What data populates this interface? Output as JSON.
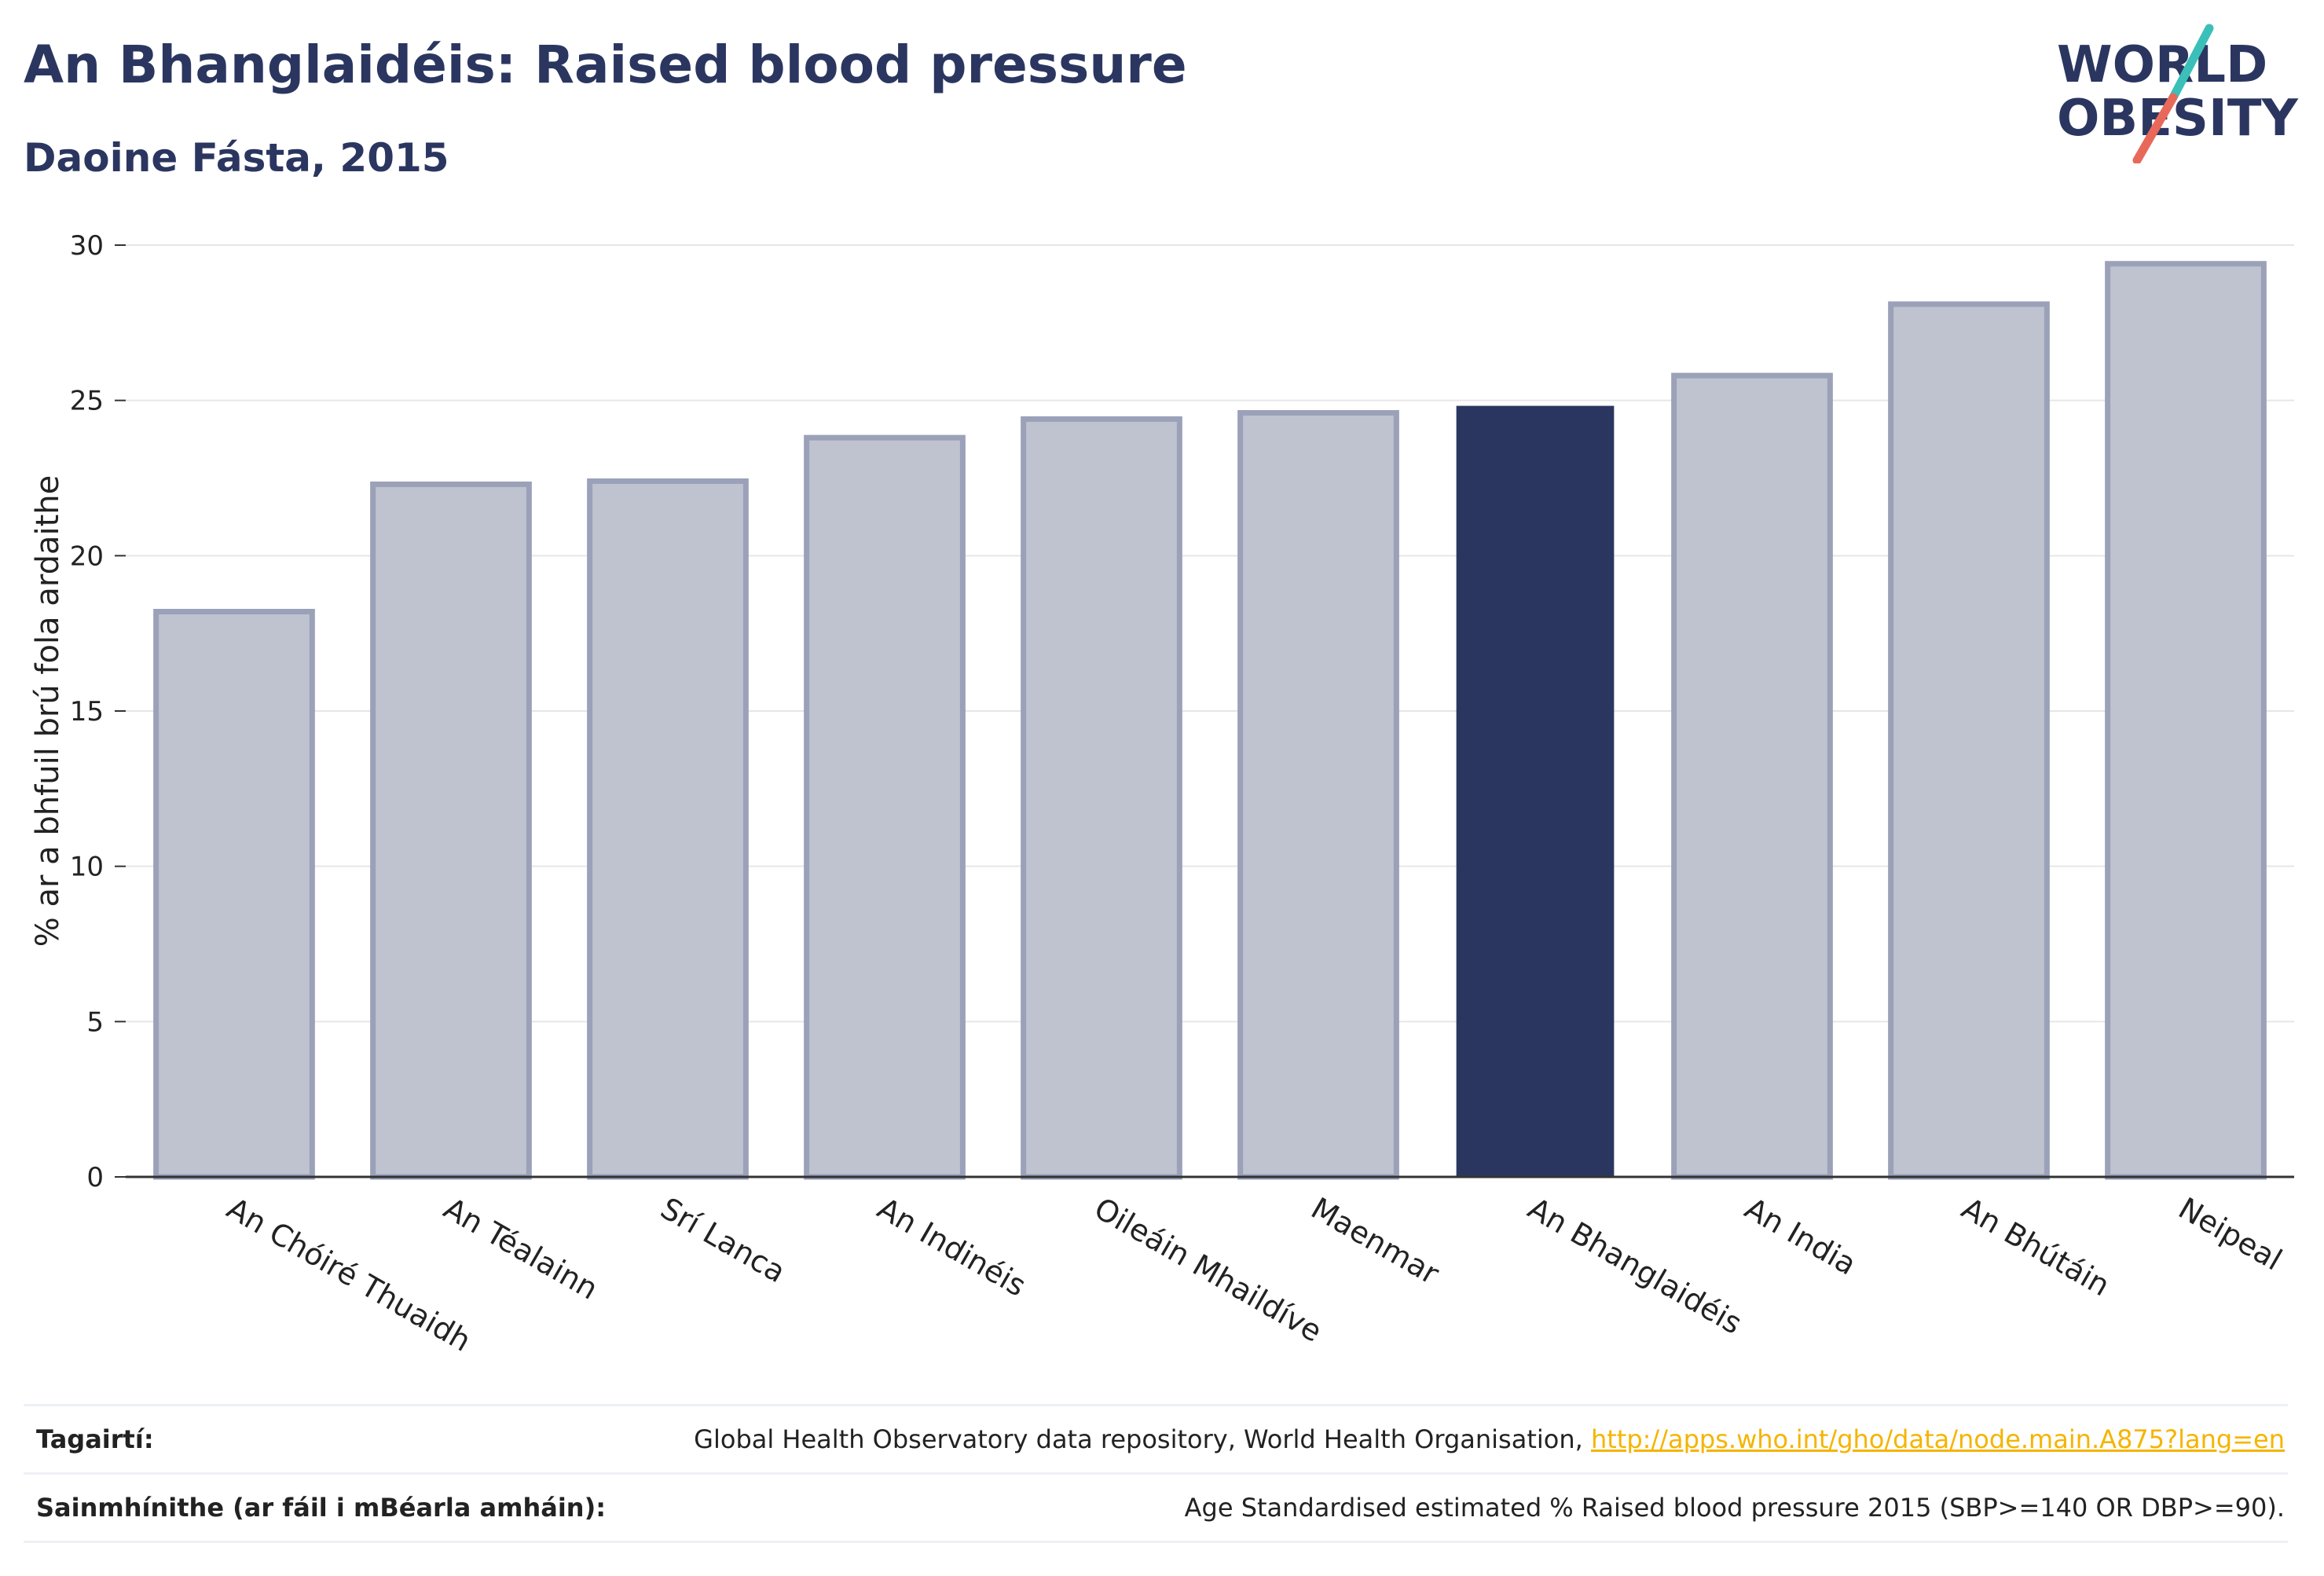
{
  "title": "An Bhanglaidéis: Raised blood pressure",
  "subtitle": "Daoine Fásta, 2015",
  "logo": {
    "line1": "WORLD",
    "line2": "OBESITY"
  },
  "colors": {
    "highlight": "#2b3660",
    "bar_fill": "#bfc3d0",
    "bar_stroke": "#9aa1b8",
    "grid": "#e6e6e6",
    "axis": "#333333",
    "link": "#f5b400",
    "logo_teal": "#3bbfb9",
    "logo_coral": "#e8695a"
  },
  "chart_data": {
    "type": "bar",
    "categories": [
      "An Chóiré Thuaidh",
      "An Téalainn",
      "Srí Lanca",
      "An Indinéis",
      "Oileáin Mhaildíve",
      "Maenmar",
      "An Bhanglaidéis",
      "An India",
      "An Bhútáin",
      "Neipeal"
    ],
    "values": [
      18.2,
      22.3,
      22.4,
      23.8,
      24.4,
      24.6,
      24.8,
      25.8,
      28.1,
      29.4
    ],
    "highlight_category": "An Bhanglaidéis",
    "ylabel": "% ar a bhfuil brú fola ardaithe",
    "ylim": [
      0,
      30
    ],
    "yticks": [
      0,
      5,
      10,
      15,
      20,
      25,
      30
    ],
    "grid": true
  },
  "footer": {
    "references_label": "Tagairtí:",
    "references_text": "Global Health Observatory data repository, World Health Organisation, ",
    "references_link": "http://apps.who.int/gho/data/node.main.A875?lang=en",
    "definitions_label": "Sainmhínithe (ar fáil i mBéarla amháin):",
    "definitions_text": "Age Standardised estimated % Raised blood pressure 2015 (SBP>=140 OR DBP>=90)."
  }
}
